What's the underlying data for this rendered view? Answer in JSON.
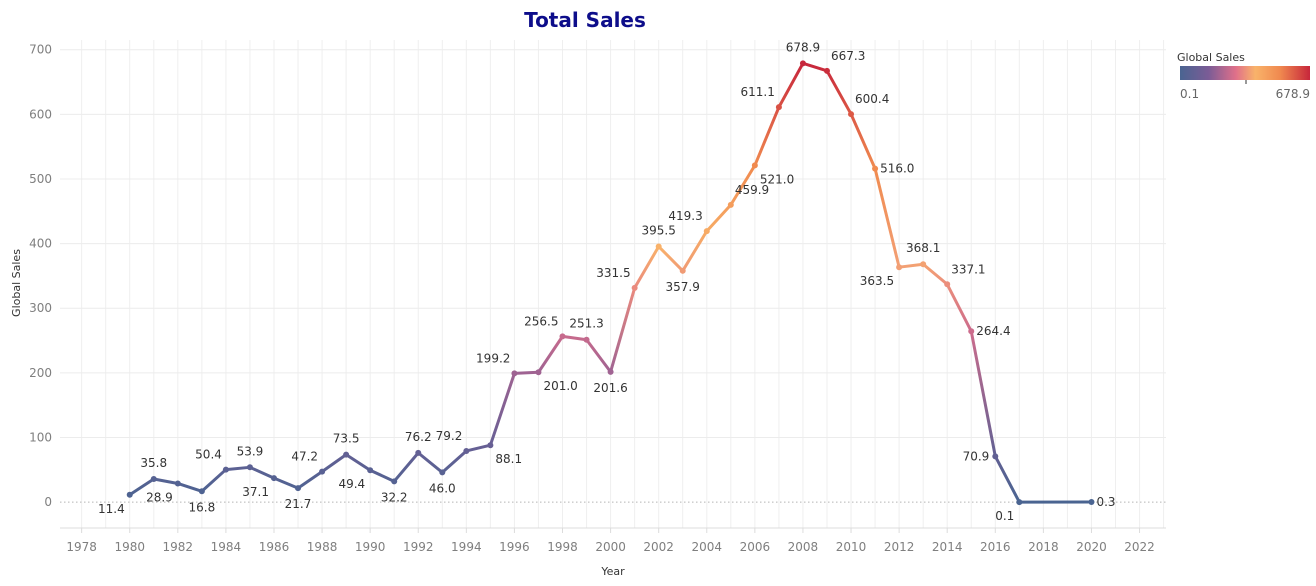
{
  "chart_data": {
    "type": "line",
    "title": "Total Sales",
    "xlabel": "Year",
    "ylabel": "Global Sales",
    "x_ticks": [
      "1978",
      "1980",
      "1982",
      "1984",
      "1986",
      "1988",
      "1990",
      "1992",
      "1994",
      "1996",
      "1998",
      "2000",
      "2002",
      "2004",
      "2006",
      "2008",
      "2010",
      "2012",
      "2014",
      "2016",
      "2018",
      "2020",
      "2022"
    ],
    "y_ticks": [
      "0",
      "100",
      "200",
      "300",
      "400",
      "500",
      "600",
      "700"
    ],
    "xlim": [
      1977.1,
      2023.1
    ],
    "ylim": [
      -40,
      715
    ],
    "grid": true,
    "zero_line": "dotted",
    "series": [
      {
        "points": [
          {
            "x": 1980,
            "y": 11.4,
            "label": "11.4",
            "label_pos": "below-left"
          },
          {
            "x": 1981,
            "y": 35.8,
            "label": "35.8",
            "label_pos": "above"
          },
          {
            "x": 1982,
            "y": 28.9,
            "label": "28.9",
            "label_pos": "below-left"
          },
          {
            "x": 1983,
            "y": 16.8,
            "label": "16.8",
            "label_pos": "below"
          },
          {
            "x": 1984,
            "y": 50.4,
            "label": "50.4",
            "label_pos": "above-left"
          },
          {
            "x": 1985,
            "y": 53.9,
            "label": "53.9",
            "label_pos": "above"
          },
          {
            "x": 1986,
            "y": 37.1,
            "label": "37.1",
            "label_pos": "below-left"
          },
          {
            "x": 1987,
            "y": 21.7,
            "label": "21.7",
            "label_pos": "below"
          },
          {
            "x": 1988,
            "y": 47.2,
            "label": "47.2",
            "label_pos": "above-left"
          },
          {
            "x": 1989,
            "y": 73.5,
            "label": "73.5",
            "label_pos": "above"
          },
          {
            "x": 1990,
            "y": 49.4,
            "label": "49.4",
            "label_pos": "below-left"
          },
          {
            "x": 1991,
            "y": 32.2,
            "label": "32.2",
            "label_pos": "below"
          },
          {
            "x": 1992,
            "y": 76.2,
            "label": "76.2",
            "label_pos": "above"
          },
          {
            "x": 1993,
            "y": 46.0,
            "label": "46.0",
            "label_pos": "below"
          },
          {
            "x": 1994,
            "y": 79.2,
            "label": "79.2",
            "label_pos": "above-left"
          },
          {
            "x": 1995,
            "y": 88.1,
            "label": "88.1",
            "label_pos": "below-right"
          },
          {
            "x": 1996,
            "y": 199.2,
            "label": "199.2",
            "label_pos": "above-left"
          },
          {
            "x": 1997,
            "y": 201.0,
            "label": "201.0",
            "label_pos": "below-right"
          },
          {
            "x": 1998,
            "y": 256.5,
            "label": "256.5",
            "label_pos": "above-left"
          },
          {
            "x": 1999,
            "y": 251.3,
            "label": "251.3",
            "label_pos": "above"
          },
          {
            "x": 2000,
            "y": 201.6,
            "label": "201.6",
            "label_pos": "below"
          },
          {
            "x": 2001,
            "y": 331.5,
            "label": "331.5",
            "label_pos": "above-left"
          },
          {
            "x": 2002,
            "y": 395.5,
            "label": "395.5",
            "label_pos": "above"
          },
          {
            "x": 2003,
            "y": 357.9,
            "label": "357.9",
            "label_pos": "below"
          },
          {
            "x": 2004,
            "y": 419.3,
            "label": "419.3",
            "label_pos": "above-left"
          },
          {
            "x": 2005,
            "y": 459.9,
            "label": "459.9",
            "label_pos": "above-right"
          },
          {
            "x": 2006,
            "y": 521.0,
            "label": "521.0",
            "label_pos": "below-right"
          },
          {
            "x": 2007,
            "y": 611.1,
            "label": "611.1",
            "label_pos": "above-left"
          },
          {
            "x": 2008,
            "y": 678.9,
            "label": "678.9",
            "label_pos": "above"
          },
          {
            "x": 2009,
            "y": 667.3,
            "label": "667.3",
            "label_pos": "above-right"
          },
          {
            "x": 2010,
            "y": 600.4,
            "label": "600.4",
            "label_pos": "above-right"
          },
          {
            "x": 2011,
            "y": 516.0,
            "label": "516.0",
            "label_pos": "right"
          },
          {
            "x": 2012,
            "y": 363.5,
            "label": "363.5",
            "label_pos": "below-left"
          },
          {
            "x": 2013,
            "y": 368.1,
            "label": "368.1",
            "label_pos": "above"
          },
          {
            "x": 2014,
            "y": 337.1,
            "label": "337.1",
            "label_pos": "above-right"
          },
          {
            "x": 2015,
            "y": 264.4,
            "label": "264.4",
            "label_pos": "right"
          },
          {
            "x": 2016,
            "y": 70.9,
            "label": "70.9",
            "label_pos": "left"
          },
          {
            "x": 2017,
            "y": 0.1,
            "label": "0.1",
            "label_pos": "below-left"
          },
          {
            "x": 2020,
            "y": 0.3,
            "label": "0.3",
            "label_pos": "right"
          }
        ]
      }
    ],
    "color_legend": {
      "title": "Global Sales",
      "min_label": "0.1",
      "max_label": "678.9",
      "min": 0.1,
      "max": 678.9,
      "stops": [
        "#4a6491",
        "#7b5c96",
        "#e0708a",
        "#f9b36a",
        "#f0894f",
        "#c7263b"
      ]
    }
  }
}
